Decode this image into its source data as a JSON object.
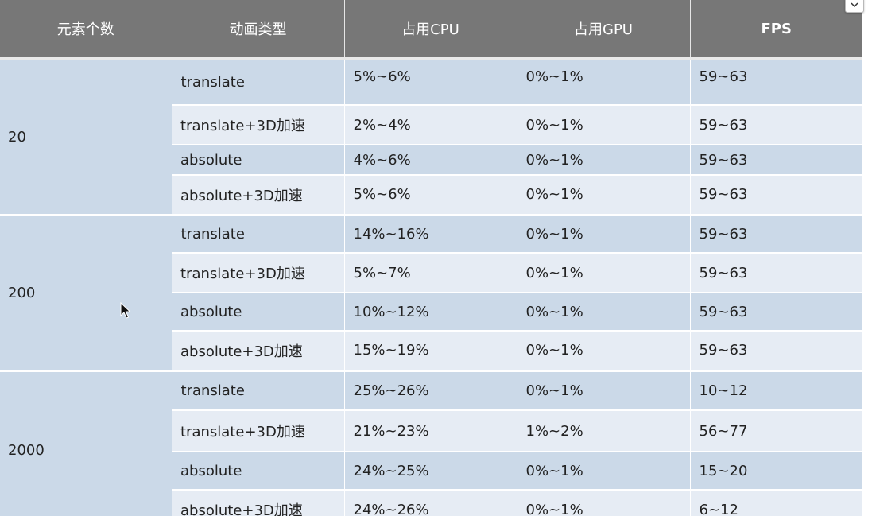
{
  "table": {
    "headers": [
      "元素个数",
      "动画类型",
      "占用CPU",
      "占用GPU",
      "FPS"
    ],
    "groups": [
      {
        "count": "20",
        "rows": [
          {
            "type": "translate",
            "cpu": "5%~6%",
            "gpu": "0%~1%",
            "fps": "59~63"
          },
          {
            "type": "translate+3D加速",
            "cpu": "2%~4%",
            "gpu": "0%~1%",
            "fps": "59~63"
          },
          {
            "type": "absolute",
            "cpu": "4%~6%",
            "gpu": "0%~1%",
            "fps": "59~63"
          },
          {
            "type": "absolute+3D加速",
            "cpu": "5%~6%",
            "gpu": "0%~1%",
            "fps": "59~63"
          }
        ]
      },
      {
        "count": "200",
        "rows": [
          {
            "type": "translate",
            "cpu": "14%~16%",
            "gpu": "0%~1%",
            "fps": "59~63"
          },
          {
            "type": "translate+3D加速",
            "cpu": "5%~7%",
            "gpu": "0%~1%",
            "fps": "59~63"
          },
          {
            "type": "absolute",
            "cpu": "10%~12%",
            "gpu": "0%~1%",
            "fps": "59~63"
          },
          {
            "type": "absolute+3D加速",
            "cpu": "15%~19%",
            "gpu": "0%~1%",
            "fps": "59~63"
          }
        ]
      },
      {
        "count": "2000",
        "rows": [
          {
            "type": "translate",
            "cpu": "25%~26%",
            "gpu": "0%~1%",
            "fps": "10~12"
          },
          {
            "type": "translate+3D加速",
            "cpu": "21%~23%",
            "gpu": "1%~2%",
            "fps": "56~77"
          },
          {
            "type": "absolute",
            "cpu": "24%~25%",
            "gpu": "0%~1%",
            "fps": "15~20"
          },
          {
            "type": "absolute+3D加速",
            "cpu": "24%~26%",
            "gpu": "0%~1%",
            "fps": "6~12"
          }
        ]
      }
    ]
  },
  "ui": {
    "scroll_icon": "chevron-down-icon",
    "cursor_icon": "mouse-pointer-icon"
  },
  "colors": {
    "header_bg": "#777777",
    "row_dark": "#cbd9e8",
    "row_light": "#e6ecf4"
  }
}
